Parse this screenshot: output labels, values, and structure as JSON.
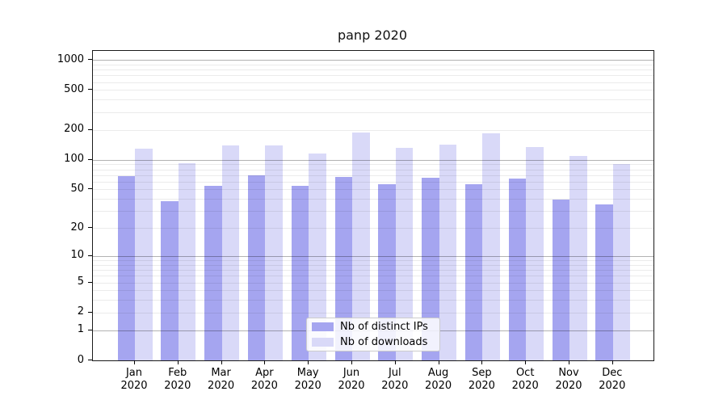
{
  "chart_data": {
    "type": "bar",
    "title": "panp 2020",
    "categories": [
      {
        "month": "Jan",
        "year": "2020"
      },
      {
        "month": "Feb",
        "year": "2020"
      },
      {
        "month": "Mar",
        "year": "2020"
      },
      {
        "month": "Apr",
        "year": "2020"
      },
      {
        "month": "May",
        "year": "2020"
      },
      {
        "month": "Jun",
        "year": "2020"
      },
      {
        "month": "Jul",
        "year": "2020"
      },
      {
        "month": "Aug",
        "year": "2020"
      },
      {
        "month": "Sep",
        "year": "2020"
      },
      {
        "month": "Oct",
        "year": "2020"
      },
      {
        "month": "Nov",
        "year": "2020"
      },
      {
        "month": "Dec",
        "year": "2020"
      }
    ],
    "series": [
      {
        "name": "Nb of distinct IPs",
        "color": "#a5a5f0",
        "values": [
          68,
          38,
          54,
          70,
          54,
          67,
          56,
          66,
          56,
          64,
          39,
          35
        ]
      },
      {
        "name": "Nb of downloads",
        "color": "#d9d9f8",
        "values": [
          130,
          93,
          138,
          138,
          115,
          187,
          132,
          143,
          184,
          133,
          109,
          90
        ]
      }
    ],
    "xlabel": "",
    "ylabel": "",
    "yscale": "log1p",
    "ylim": [
      0,
      1230
    ],
    "yticks": [
      0,
      1,
      2,
      5,
      10,
      20,
      50,
      100,
      200,
      500,
      1000
    ],
    "grid": {
      "major_lines_at": [
        1,
        10,
        100,
        1000
      ],
      "minor_lines": "2-9 of each decade",
      "grid_on": true
    },
    "legend_position": "lower center"
  }
}
